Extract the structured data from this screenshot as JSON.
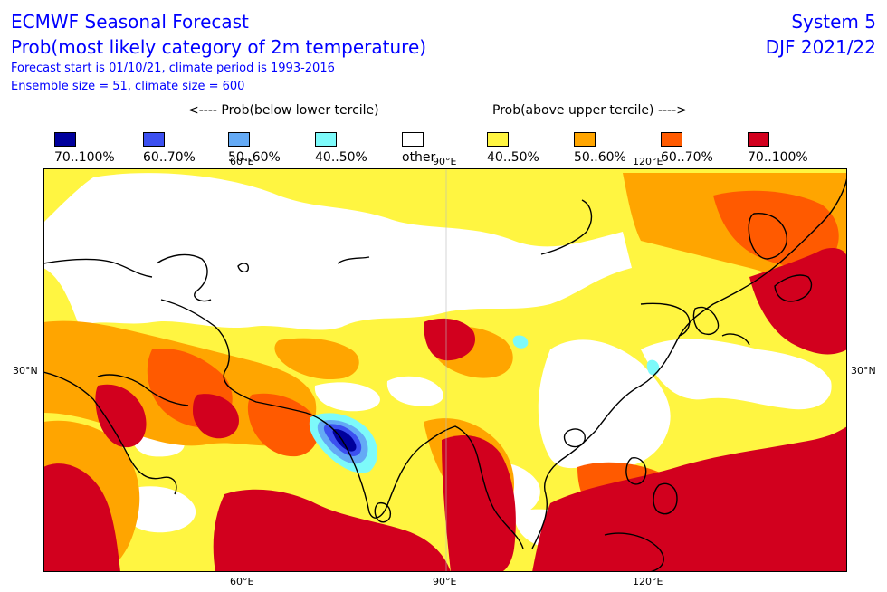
{
  "header": {
    "title": "ECMWF Seasonal Forecast",
    "subtitle": "Prob(most likely category of 2m temperature)",
    "forecast_start": "Forecast start is 01/10/21, climate period is 1993-2016",
    "ensemble": "Ensemble size = 51, climate size = 600",
    "system": "System 5",
    "period": "DJF 2021/22"
  },
  "legend": {
    "below_heading": "<---- Prob(below lower tercile)",
    "above_heading": "Prob(above upper tercile) ---->",
    "items": [
      {
        "label": "70..100%",
        "color": "#00009c"
      },
      {
        "label": "60..70%",
        "color": "#3c50f0"
      },
      {
        "label": "50..60%",
        "color": "#64aaf5"
      },
      {
        "label": "40..50%",
        "color": "#7dfafa"
      },
      {
        "label": "other",
        "color": "#ffffff"
      },
      {
        "label": "40..50%",
        "color": "#fff541"
      },
      {
        "label": "50..60%",
        "color": "#ffa500"
      },
      {
        "label": "60..70%",
        "color": "#ff5a00"
      },
      {
        "label": "70..100%",
        "color": "#d2001e"
      }
    ]
  },
  "axes": {
    "lon_ticks": [
      "60°E",
      "90°E",
      "120°E"
    ],
    "lat_ticks": [
      "30°N"
    ]
  }
}
